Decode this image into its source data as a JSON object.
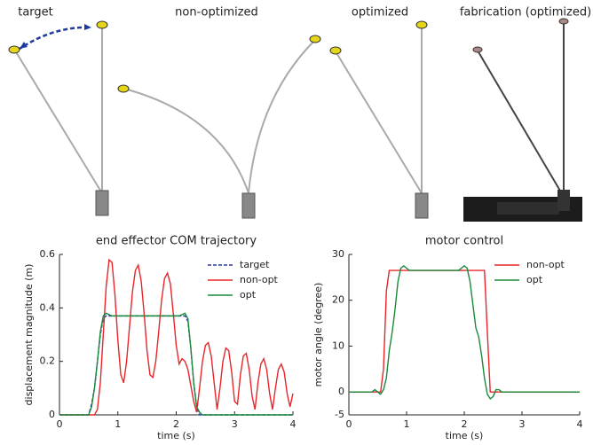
{
  "panels": [
    "target",
    "non-optimized",
    "optimized",
    "fabrication (optimized)"
  ],
  "chart_data": [
    {
      "type": "line",
      "title": "end effector COM trajectory",
      "x_label": "time (s)",
      "y_label": "displacement magnitude (m)",
      "xlim": [
        0,
        4
      ],
      "ylim": [
        0,
        0.6
      ],
      "xticks": [
        0,
        1,
        2,
        3,
        4
      ],
      "yticks": [
        0,
        0.2,
        0.4,
        0.6
      ],
      "grid": false,
      "legend": "upper right",
      "x": [
        0,
        0.05,
        0.1,
        0.15,
        0.2,
        0.25,
        0.3,
        0.35,
        0.4,
        0.45,
        0.5,
        0.55,
        0.6,
        0.65,
        0.7,
        0.75,
        0.8,
        0.85,
        0.9,
        0.95,
        1,
        1.05,
        1.1,
        1.15,
        1.2,
        1.25,
        1.3,
        1.35,
        1.4,
        1.45,
        1.5,
        1.55,
        1.6,
        1.65,
        1.7,
        1.75,
        1.8,
        1.85,
        1.9,
        1.95,
        2,
        2.05,
        2.1,
        2.15,
        2.2,
        2.25,
        2.3,
        2.35,
        2.4,
        2.45,
        2.5,
        2.55,
        2.6,
        2.65,
        2.7,
        2.75,
        2.8,
        2.85,
        2.9,
        2.95,
        3,
        3.05,
        3.1,
        3.15,
        3.2,
        3.25,
        3.3,
        3.35,
        3.4,
        3.45,
        3.5,
        3.55,
        3.6,
        3.65,
        3.7,
        3.75,
        3.8,
        3.85,
        3.9,
        3.95,
        4
      ],
      "series": [
        {
          "name": "target",
          "color": "#2b3a9a",
          "style": "dashed",
          "values": [
            0,
            0,
            0,
            0,
            0,
            0,
            0,
            0,
            0,
            0,
            0,
            0.04,
            0.1,
            0.2,
            0.3,
            0.36,
            0.37,
            0.37,
            0.37,
            0.37,
            0.37,
            0.37,
            0.37,
            0.37,
            0.37,
            0.37,
            0.37,
            0.37,
            0.37,
            0.37,
            0.37,
            0.37,
            0.37,
            0.37,
            0.37,
            0.37,
            0.37,
            0.37,
            0.37,
            0.37,
            0.37,
            0.37,
            0.37,
            0.37,
            0.35,
            0.25,
            0.12,
            0.03,
            0,
            0,
            0,
            0,
            0,
            0,
            0,
            0,
            0,
            0,
            0,
            0,
            0,
            0,
            0,
            0,
            0,
            0,
            0,
            0,
            0,
            0,
            0,
            0,
            0,
            0,
            0,
            0,
            0,
            0,
            0,
            0,
            0
          ]
        },
        {
          "name": "non-opt",
          "color": "#e8262a",
          "style": "solid",
          "values": [
            0,
            0,
            0,
            0,
            0,
            0,
            0,
            0,
            0,
            0,
            0,
            0,
            0,
            0.02,
            0.12,
            0.3,
            0.48,
            0.58,
            0.57,
            0.45,
            0.28,
            0.15,
            0.12,
            0.2,
            0.33,
            0.46,
            0.54,
            0.56,
            0.5,
            0.38,
            0.24,
            0.15,
            0.14,
            0.2,
            0.31,
            0.43,
            0.51,
            0.53,
            0.49,
            0.38,
            0.26,
            0.19,
            0.21,
            0.2,
            0.17,
            0.11,
            0.05,
            0.01,
            0.1,
            0.2,
            0.26,
            0.27,
            0.22,
            0.12,
            0.02,
            0.1,
            0.2,
            0.25,
            0.24,
            0.16,
            0.05,
            0.04,
            0.15,
            0.22,
            0.23,
            0.17,
            0.07,
            0.02,
            0.12,
            0.19,
            0.21,
            0.17,
            0.08,
            0.02,
            0.1,
            0.17,
            0.19,
            0.16,
            0.08,
            0.03,
            0.08
          ]
        },
        {
          "name": "opt",
          "color": "#1a8a3a",
          "style": "solid",
          "values": [
            0,
            0,
            0,
            0,
            0,
            0,
            0,
            0,
            0,
            0,
            0,
            0.03,
            0.1,
            0.2,
            0.31,
            0.37,
            0.38,
            0.375,
            0.37,
            0.37,
            0.37,
            0.37,
            0.37,
            0.37,
            0.37,
            0.37,
            0.37,
            0.37,
            0.37,
            0.37,
            0.37,
            0.37,
            0.37,
            0.37,
            0.37,
            0.37,
            0.37,
            0.37,
            0.37,
            0.37,
            0.37,
            0.37,
            0.375,
            0.38,
            0.36,
            0.25,
            0.12,
            0.03,
            0.01,
            0,
            0,
            0,
            0,
            0,
            0,
            0,
            0,
            0,
            0,
            0,
            0,
            0,
            0,
            0,
            0,
            0,
            0,
            0,
            0,
            0,
            0,
            0,
            0,
            0,
            0,
            0,
            0,
            0,
            0,
            0,
            0
          ]
        }
      ]
    },
    {
      "type": "line",
      "title": "motor control",
      "x_label": "time (s)",
      "y_label": "motor angle (degree)",
      "xlim": [
        0,
        4
      ],
      "ylim": [
        -5,
        30
      ],
      "xticks": [
        0,
        1,
        2,
        3,
        4
      ],
      "yticks": [
        -5,
        0,
        10,
        20,
        30
      ],
      "grid": false,
      "legend": "upper right",
      "x": [
        0,
        0.05,
        0.1,
        0.15,
        0.2,
        0.25,
        0.3,
        0.35,
        0.4,
        0.45,
        0.5,
        0.55,
        0.6,
        0.65,
        0.7,
        0.75,
        0.8,
        0.85,
        0.9,
        0.95,
        1,
        1.05,
        1.1,
        1.15,
        1.2,
        1.25,
        1.3,
        1.35,
        1.4,
        1.45,
        1.5,
        1.55,
        1.6,
        1.65,
        1.7,
        1.75,
        1.8,
        1.85,
        1.9,
        1.95,
        2,
        2.05,
        2.1,
        2.15,
        2.2,
        2.25,
        2.3,
        2.35,
        2.4,
        2.45,
        2.5,
        2.55,
        2.6,
        2.65,
        2.7,
        2.75,
        2.8,
        2.85,
        2.9,
        2.95,
        3,
        3.05,
        3.1,
        3.15,
        3.2,
        3.25,
        3.3,
        3.35,
        3.4,
        3.45,
        3.5,
        3.55,
        3.6,
        3.65,
        3.7,
        3.75,
        3.8,
        3.85,
        3.9,
        3.95,
        4
      ],
      "series": [
        {
          "name": "non-opt",
          "color": "#e8262a",
          "style": "solid",
          "values": [
            0,
            0,
            0,
            0,
            0,
            0,
            0,
            0,
            0,
            0,
            0,
            0,
            5,
            22,
            26.5,
            26.5,
            26.5,
            26.5,
            26.5,
            26.5,
            26.5,
            26.5,
            26.5,
            26.5,
            26.5,
            26.5,
            26.5,
            26.5,
            26.5,
            26.5,
            26.5,
            26.5,
            26.5,
            26.5,
            26.5,
            26.5,
            26.5,
            26.5,
            26.5,
            26.5,
            26.5,
            26.5,
            26.5,
            26.5,
            26.5,
            26.5,
            26.5,
            26.5,
            13,
            0,
            0,
            0,
            0,
            0,
            0,
            0,
            0,
            0,
            0,
            0,
            0,
            0,
            0,
            0,
            0,
            0,
            0,
            0,
            0,
            0,
            0,
            0,
            0,
            0,
            0,
            0,
            0,
            0,
            0,
            0,
            0
          ]
        },
        {
          "name": "opt",
          "color": "#1a8a3a",
          "style": "solid",
          "values": [
            0,
            0,
            0,
            0,
            0,
            0,
            0,
            0,
            0,
            0.5,
            0,
            -0.5,
            0.5,
            3,
            9,
            13,
            18,
            24,
            27,
            27.5,
            27,
            26.5,
            26.5,
            26.5,
            26.5,
            26.5,
            26.5,
            26.5,
            26.5,
            26.5,
            26.5,
            26.5,
            26.5,
            26.5,
            26.5,
            26.5,
            26.5,
            26.5,
            26.5,
            27,
            27.5,
            27,
            24,
            19,
            14,
            12,
            8,
            3,
            -0.5,
            -1.5,
            -1,
            0.5,
            0.5,
            0,
            0,
            0,
            0,
            0,
            0,
            0,
            0,
            0,
            0,
            0,
            0,
            0,
            0,
            0,
            0,
            0,
            0,
            0,
            0,
            0,
            0,
            0,
            0,
            0,
            0,
            0,
            0
          ]
        }
      ]
    }
  ]
}
